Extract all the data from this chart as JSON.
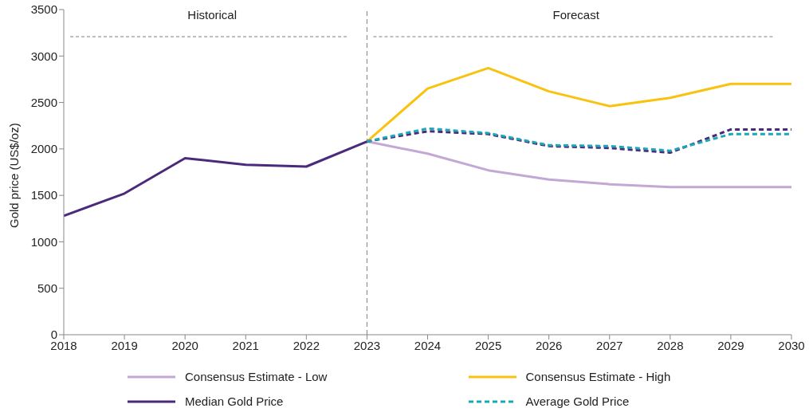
{
  "chart_data": {
    "type": "line",
    "ylabel": "Gold price (US$/oz)",
    "x": [
      2018,
      2019,
      2020,
      2021,
      2022,
      2023,
      2024,
      2025,
      2026,
      2027,
      2028,
      2029,
      2030
    ],
    "xlim": [
      2018,
      2030
    ],
    "xticks": [
      2018,
      2019,
      2020,
      2021,
      2022,
      2023,
      2024,
      2025,
      2026,
      2027,
      2028,
      2029,
      2030
    ],
    "ylim": [
      0,
      3500
    ],
    "yticks": [
      0,
      500,
      1000,
      1500,
      2000,
      2500,
      3000,
      3500
    ],
    "grid": false,
    "legend": "bottom",
    "marker": "none",
    "series": [
      {
        "name": "Consensus Estimate - Low",
        "color": "#c3a8d6",
        "line_style": "solid",
        "values": [
          null,
          null,
          null,
          null,
          null,
          2080,
          1950,
          1770,
          1670,
          1620,
          1590,
          1590,
          1590
        ]
      },
      {
        "name": "Consensus Estimate - High",
        "color": "#f9c20e",
        "line_style": "solid",
        "values": [
          null,
          null,
          null,
          null,
          null,
          2080,
          2650,
          2870,
          2620,
          2460,
          2550,
          2700,
          2700
        ]
      },
      {
        "name": "Median Gold Price",
        "color": "#4b2a7b",
        "line_style": "solid",
        "values": [
          1280,
          1520,
          1900,
          1830,
          1810,
          2080,
          null,
          null,
          null,
          null,
          null,
          null,
          null
        ]
      },
      {
        "color": "#4b2a7b",
        "line_style": "dashed",
        "values": [
          null,
          null,
          null,
          null,
          null,
          2080,
          2190,
          2160,
          2030,
          2010,
          1960,
          2210,
          2210
        ]
      },
      {
        "name": "Average Gold Price",
        "color": "#1aa7b8",
        "line_style": "dashed",
        "values": [
          null,
          null,
          null,
          null,
          null,
          2080,
          2220,
          2170,
          2040,
          2030,
          1980,
          2160,
          2160
        ]
      }
    ],
    "ref_lines": [
      {
        "axis": "x",
        "value": 2023,
        "color": "#808080",
        "line_style": "dashed"
      }
    ],
    "annotations": [
      "Historical",
      "Forecast"
    ]
  }
}
